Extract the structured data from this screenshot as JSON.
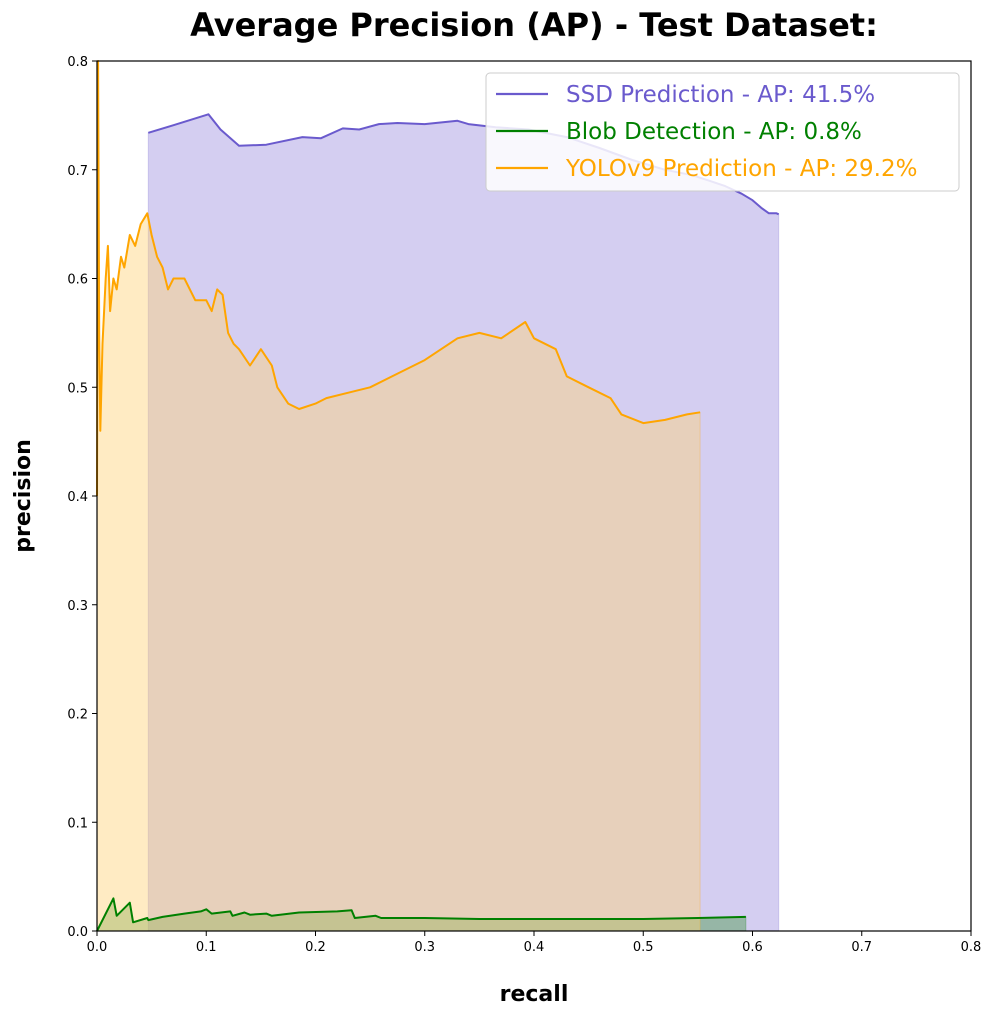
{
  "chart_data": {
    "type": "line",
    "title": "Average Precision (AP) - Test Dataset:",
    "xlabel": "recall",
    "ylabel": "precision",
    "xlim": [
      0,
      0.8
    ],
    "ylim": [
      0,
      0.8
    ],
    "xticks": [
      "0.0",
      "0.1",
      "0.2",
      "0.3",
      "0.4",
      "0.5",
      "0.6",
      "0.7",
      "0.8"
    ],
    "yticks": [
      "0.0",
      "0.1",
      "0.2",
      "0.3",
      "0.4",
      "0.5",
      "0.6",
      "0.7",
      "0.8"
    ],
    "grid": false,
    "legend_position": "top-right",
    "filled_area_under_curves": true,
    "series": [
      {
        "name": "SSD Prediction - AP: 41.5%",
        "color": "#6a5acd",
        "fill_color": "#9f93e0",
        "points": [
          [
            0.047,
            0.734
          ],
          [
            0.07,
            0.741
          ],
          [
            0.102,
            0.751
          ],
          [
            0.113,
            0.737
          ],
          [
            0.13,
            0.722
          ],
          [
            0.155,
            0.723
          ],
          [
            0.188,
            0.73
          ],
          [
            0.205,
            0.729
          ],
          [
            0.225,
            0.738
          ],
          [
            0.24,
            0.737
          ],
          [
            0.258,
            0.742
          ],
          [
            0.275,
            0.743
          ],
          [
            0.3,
            0.742
          ],
          [
            0.33,
            0.745
          ],
          [
            0.34,
            0.742
          ],
          [
            0.365,
            0.739
          ],
          [
            0.395,
            0.737
          ],
          [
            0.43,
            0.73
          ],
          [
            0.46,
            0.72
          ],
          [
            0.49,
            0.709
          ],
          [
            0.52,
            0.7
          ],
          [
            0.545,
            0.695
          ],
          [
            0.56,
            0.69
          ],
          [
            0.575,
            0.685
          ],
          [
            0.59,
            0.678
          ],
          [
            0.6,
            0.672
          ],
          [
            0.608,
            0.665
          ],
          [
            0.615,
            0.66
          ],
          [
            0.622,
            0.66
          ],
          [
            0.624,
            0.659
          ]
        ]
      },
      {
        "name": "Blob Detection - AP: 0.8%",
        "color": "#008000",
        "fill_color": "#4c9a4c",
        "points": [
          [
            0.0,
            0.0
          ],
          [
            0.015,
            0.03
          ],
          [
            0.018,
            0.014
          ],
          [
            0.03,
            0.026
          ],
          [
            0.033,
            0.008
          ],
          [
            0.046,
            0.012
          ],
          [
            0.047,
            0.01
          ],
          [
            0.06,
            0.013
          ],
          [
            0.08,
            0.016
          ],
          [
            0.095,
            0.018
          ],
          [
            0.1,
            0.02
          ],
          [
            0.105,
            0.016
          ],
          [
            0.122,
            0.018
          ],
          [
            0.124,
            0.014
          ],
          [
            0.135,
            0.017
          ],
          [
            0.14,
            0.015
          ],
          [
            0.155,
            0.016
          ],
          [
            0.16,
            0.014
          ],
          [
            0.185,
            0.017
          ],
          [
            0.22,
            0.018
          ],
          [
            0.233,
            0.019
          ],
          [
            0.236,
            0.012
          ],
          [
            0.255,
            0.014
          ],
          [
            0.26,
            0.012
          ],
          [
            0.3,
            0.012
          ],
          [
            0.35,
            0.011
          ],
          [
            0.4,
            0.011
          ],
          [
            0.45,
            0.011
          ],
          [
            0.5,
            0.011
          ],
          [
            0.55,
            0.012
          ],
          [
            0.594,
            0.013
          ]
        ]
      },
      {
        "name": "YOLOv9 Prediction - AP: 29.2%",
        "color": "#ffa500",
        "fill_color": "#ffd27a",
        "points": [
          [
            0.0,
            0.4
          ],
          [
            0.001,
            0.8
          ],
          [
            0.002,
            0.55
          ],
          [
            0.003,
            0.46
          ],
          [
            0.005,
            0.54
          ],
          [
            0.008,
            0.6
          ],
          [
            0.01,
            0.63
          ],
          [
            0.012,
            0.57
          ],
          [
            0.015,
            0.6
          ],
          [
            0.018,
            0.59
          ],
          [
            0.022,
            0.62
          ],
          [
            0.025,
            0.61
          ],
          [
            0.03,
            0.64
          ],
          [
            0.035,
            0.63
          ],
          [
            0.04,
            0.65
          ],
          [
            0.046,
            0.66
          ],
          [
            0.05,
            0.64
          ],
          [
            0.055,
            0.62
          ],
          [
            0.06,
            0.61
          ],
          [
            0.065,
            0.59
          ],
          [
            0.07,
            0.6
          ],
          [
            0.08,
            0.6
          ],
          [
            0.09,
            0.58
          ],
          [
            0.1,
            0.58
          ],
          [
            0.105,
            0.57
          ],
          [
            0.11,
            0.59
          ],
          [
            0.115,
            0.585
          ],
          [
            0.12,
            0.55
          ],
          [
            0.125,
            0.54
          ],
          [
            0.13,
            0.535
          ],
          [
            0.14,
            0.52
          ],
          [
            0.15,
            0.535
          ],
          [
            0.16,
            0.52
          ],
          [
            0.165,
            0.5
          ],
          [
            0.175,
            0.485
          ],
          [
            0.185,
            0.48
          ],
          [
            0.2,
            0.485
          ],
          [
            0.21,
            0.49
          ],
          [
            0.23,
            0.495
          ],
          [
            0.25,
            0.5
          ],
          [
            0.27,
            0.51
          ],
          [
            0.3,
            0.525
          ],
          [
            0.33,
            0.545
          ],
          [
            0.35,
            0.55
          ],
          [
            0.37,
            0.545
          ],
          [
            0.392,
            0.56
          ],
          [
            0.4,
            0.545
          ],
          [
            0.42,
            0.535
          ],
          [
            0.43,
            0.51
          ],
          [
            0.45,
            0.5
          ],
          [
            0.47,
            0.49
          ],
          [
            0.48,
            0.475
          ],
          [
            0.5,
            0.467
          ],
          [
            0.52,
            0.47
          ],
          [
            0.54,
            0.475
          ],
          [
            0.552,
            0.477
          ]
        ]
      }
    ]
  }
}
